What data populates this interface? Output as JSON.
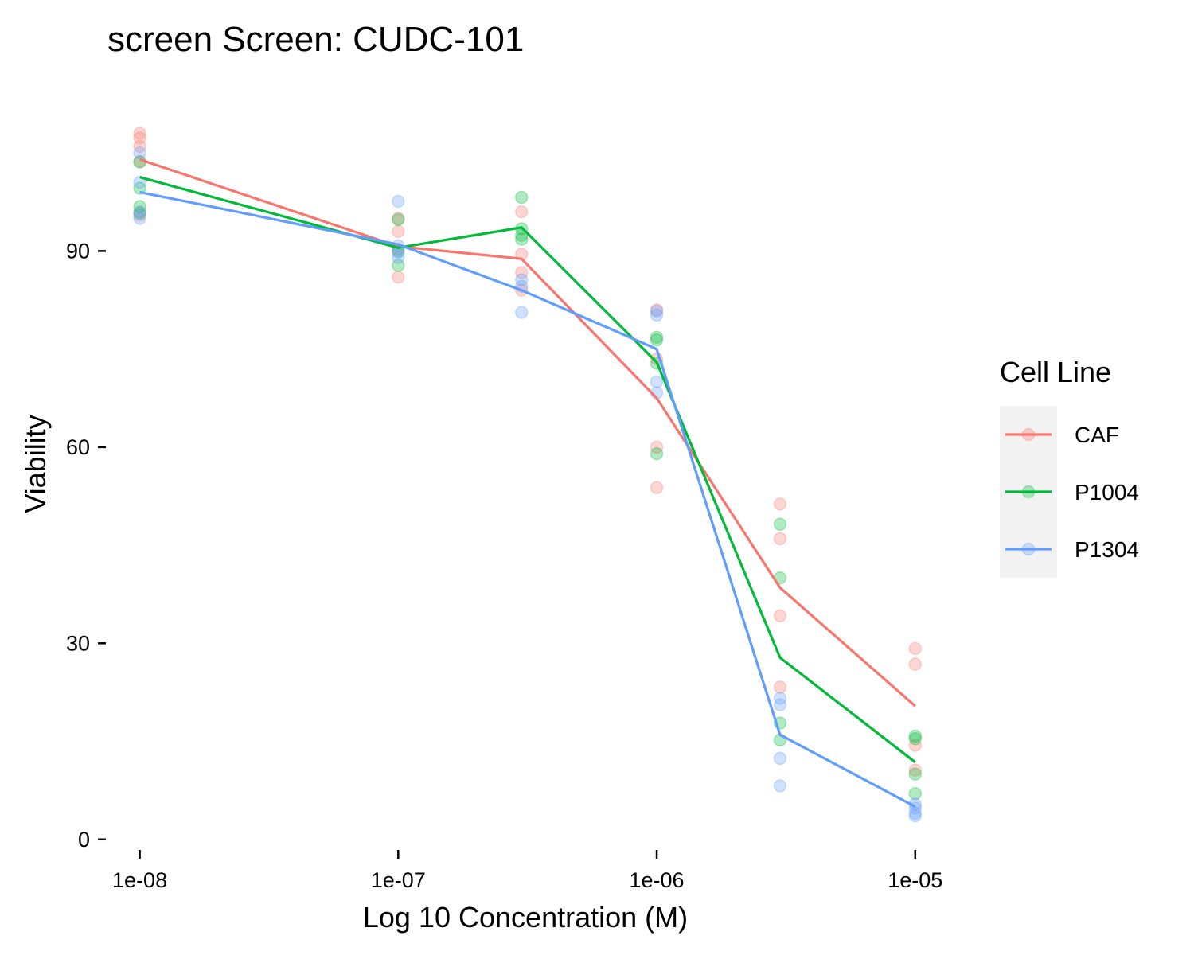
{
  "chart_data": {
    "type": "line",
    "title": "screen Screen: CUDC-101",
    "xlabel": "Log 10 Concentration (M)",
    "ylabel": "Viability",
    "x_scale": "log10",
    "x_ticks": [
      {
        "value": 1e-08,
        "label": "1e-08"
      },
      {
        "value": 1e-07,
        "label": "1e-07"
      },
      {
        "value": 1e-06,
        "label": "1e-06"
      },
      {
        "value": 1e-05,
        "label": "1e-05"
      }
    ],
    "y_ticks": [
      {
        "value": 0,
        "label": "0"
      },
      {
        "value": 30,
        "label": "30"
      },
      {
        "value": 60,
        "label": "60"
      },
      {
        "value": 90,
        "label": "90"
      }
    ],
    "xlim": [
      7.5e-09,
      1.33e-05
    ],
    "ylim": [
      -1,
      115
    ],
    "grid": false,
    "legend": {
      "title": "Cell Line",
      "position": "right"
    },
    "x": [
      1e-08,
      1e-07,
      3e-07,
      1e-06,
      3e-06,
      1e-05
    ],
    "series": [
      {
        "name": "CAF",
        "color": "#F8766D",
        "values": [
          104,
          90.7,
          88.8,
          67.5,
          38.5,
          20.4
        ],
        "points": [
          [
            1e-08,
            108
          ],
          [
            1e-08,
            107.3
          ],
          [
            1e-08,
            106
          ],
          [
            1e-08,
            103.7
          ],
          [
            1e-08,
            95.5
          ],
          [
            1e-07,
            95
          ],
          [
            1e-07,
            93
          ],
          [
            1e-07,
            90.3
          ],
          [
            1e-07,
            86
          ],
          [
            3e-07,
            96
          ],
          [
            3e-07,
            89.5
          ],
          [
            3e-07,
            86.7
          ],
          [
            3e-07,
            84
          ],
          [
            1e-06,
            81
          ],
          [
            1e-06,
            73.5
          ],
          [
            1e-06,
            60
          ],
          [
            1e-06,
            53.8
          ],
          [
            3e-06,
            51.3
          ],
          [
            3e-06,
            46
          ],
          [
            3e-06,
            34.2
          ],
          [
            3e-06,
            23.3
          ],
          [
            1e-05,
            29.2
          ],
          [
            1e-05,
            26.8
          ],
          [
            1e-05,
            14.4
          ],
          [
            1e-05,
            10.6
          ]
        ]
      },
      {
        "name": "P1004",
        "color": "#00BA38",
        "values": [
          101.3,
          90.5,
          93.6,
          73,
          27.8,
          11.8
        ],
        "points": [
          [
            1e-08,
            103.6
          ],
          [
            1e-08,
            99.6
          ],
          [
            1e-08,
            96.8
          ],
          [
            1e-08,
            95.8
          ],
          [
            1e-07,
            94.8
          ],
          [
            1e-07,
            90
          ],
          [
            1e-07,
            87.8
          ],
          [
            3e-07,
            98.2
          ],
          [
            3e-07,
            93.4
          ],
          [
            3e-07,
            92.4
          ],
          [
            3e-07,
            91.8
          ],
          [
            1e-06,
            76.8
          ],
          [
            1e-06,
            76.4
          ],
          [
            1e-06,
            72.8
          ],
          [
            1e-06,
            59
          ],
          [
            3e-06,
            48.2
          ],
          [
            3e-06,
            40
          ],
          [
            3e-06,
            17.8
          ],
          [
            3e-06,
            15.2
          ],
          [
            1e-05,
            15.8
          ],
          [
            1e-05,
            15.4
          ],
          [
            1e-05,
            10
          ],
          [
            1e-05,
            7
          ]
        ]
      },
      {
        "name": "P1304",
        "color": "#619CFF",
        "values": [
          99,
          91,
          84,
          75,
          16,
          5
        ],
        "points": [
          [
            1e-08,
            105
          ],
          [
            1e-08,
            100.5
          ],
          [
            1e-08,
            96
          ],
          [
            1e-08,
            95
          ],
          [
            1e-07,
            97.6
          ],
          [
            1e-07,
            90.8
          ],
          [
            1e-07,
            89.8
          ],
          [
            1e-07,
            89
          ],
          [
            3e-07,
            85.6
          ],
          [
            3e-07,
            84.6
          ],
          [
            3e-07,
            80.6
          ],
          [
            1e-06,
            80.8
          ],
          [
            1e-06,
            80.2
          ],
          [
            1e-06,
            70
          ],
          [
            1e-06,
            68.3
          ],
          [
            3e-06,
            21.6
          ],
          [
            3e-06,
            20.6
          ],
          [
            3e-06,
            12.4
          ],
          [
            3e-06,
            8.2
          ],
          [
            1e-05,
            5.4
          ],
          [
            1e-05,
            4.8
          ],
          [
            1e-05,
            4
          ],
          [
            1e-05,
            3.6
          ]
        ]
      }
    ]
  }
}
